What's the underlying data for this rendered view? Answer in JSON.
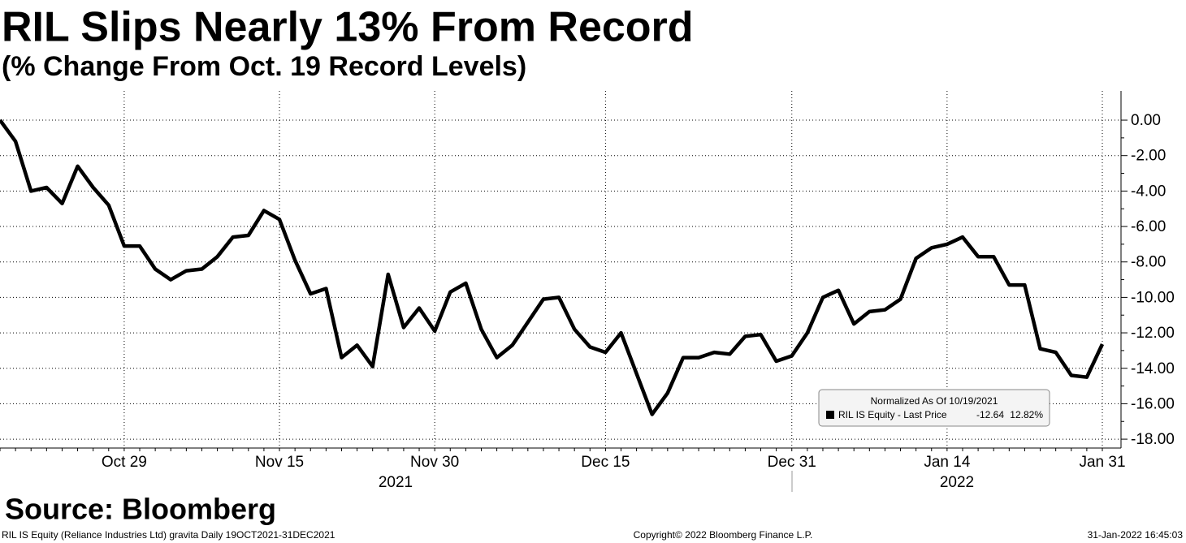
{
  "chart_data": {
    "type": "line",
    "title": "RIL Slips Nearly 13% From Record",
    "subtitle": "(% Change From Oct. 19 Record Levels)",
    "categories": [
      null,
      null,
      null,
      null,
      null,
      null,
      null,
      null,
      "Oct 29",
      null,
      null,
      null,
      null,
      null,
      null,
      null,
      null,
      null,
      "Nov 15",
      null,
      null,
      null,
      null,
      null,
      null,
      null,
      null,
      null,
      "Nov 30",
      null,
      null,
      null,
      null,
      null,
      null,
      null,
      null,
      null,
      null,
      "Dec 15",
      null,
      null,
      null,
      null,
      null,
      null,
      null,
      null,
      null,
      null,
      null,
      "Dec 31",
      null,
      null,
      null,
      null,
      null,
      null,
      null,
      null,
      null,
      "Jan 14",
      null,
      null,
      null,
      null,
      null,
      null,
      null,
      null,
      null,
      "Jan 31"
    ],
    "years": [
      "2021",
      "2022"
    ],
    "series": [
      {
        "name": "RIL IS Equity - Last Price",
        "color": "#000000",
        "values": [
          0.0,
          -1.2,
          -4.0,
          -3.8,
          -4.7,
          -2.6,
          -3.8,
          -4.8,
          -7.1,
          -7.1,
          -8.4,
          -9.0,
          -8.5,
          -8.4,
          -7.7,
          -6.6,
          -6.5,
          -5.1,
          -5.6,
          -7.9,
          -9.8,
          -9.5,
          -13.4,
          -12.7,
          -13.9,
          -8.7,
          -11.7,
          -10.6,
          -11.9,
          -9.7,
          -9.2,
          -11.8,
          -13.4,
          -12.7,
          -11.4,
          -10.1,
          -10.0,
          -11.8,
          -12.8,
          -13.1,
          -12.0,
          -14.3,
          -16.6,
          -15.4,
          -13.4,
          -13.4,
          -13.1,
          -13.2,
          -12.2,
          -12.1,
          -13.6,
          -13.3,
          -12.0,
          -10.0,
          -9.6,
          -11.5,
          -10.8,
          -10.7,
          -10.1,
          -7.8,
          -7.2,
          -7.0,
          -6.6,
          -7.7,
          -7.7,
          -9.3,
          -9.3,
          -12.9,
          -13.1,
          -14.4,
          -14.5,
          -12.64
        ]
      }
    ],
    "legend_header": "Normalized As Of 10/19/2021",
    "legend_last_price": "-12.64",
    "legend_change": "12.82%",
    "ylim": [
      -18.5,
      1.65
    ],
    "yticks": [
      {
        "value": 0,
        "label": "0.00"
      },
      {
        "value": -2,
        "label": "-2.00"
      },
      {
        "value": -4,
        "label": "-4.00"
      },
      {
        "value": -6,
        "label": "-6.00"
      },
      {
        "value": -8,
        "label": "-8.00"
      },
      {
        "value": -10,
        "label": "-10.00"
      },
      {
        "value": -12,
        "label": "-12.00"
      },
      {
        "value": -14,
        "label": "-14.00"
      },
      {
        "value": -16,
        "label": "-16.00"
      },
      {
        "value": -18,
        "label": "-18.00"
      }
    ],
    "grid": true,
    "source": "Source: Bloomberg",
    "footer_left": "RIL IS Equity (Reliance Industries Ltd) gravita  Daily 19OCT2021-31DEC2021",
    "footer_center": "Copyright© 2022 Bloomberg Finance L.P.",
    "footer_right": "31-Jan-2022 16:45:03"
  }
}
